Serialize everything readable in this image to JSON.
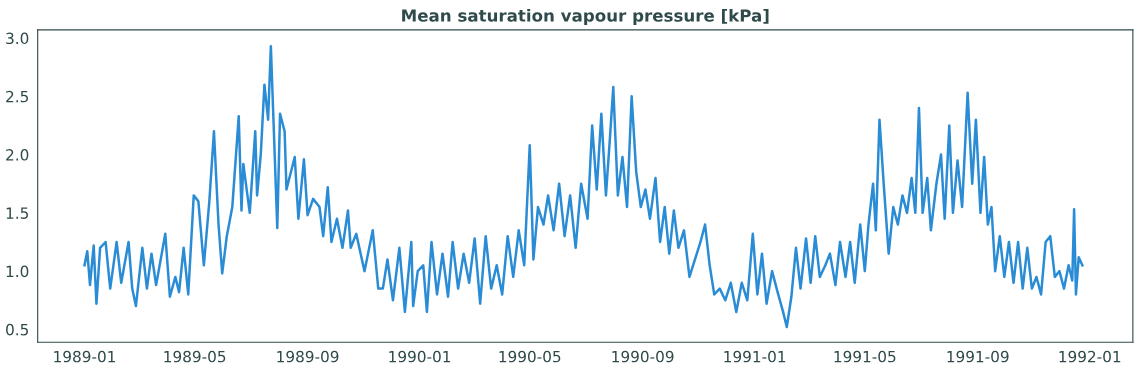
{
  "chart_data": {
    "type": "line",
    "title": "Mean saturation vapour pressure [kPa]",
    "x": [
      "1989-01-01",
      "1989-01-04",
      "1989-01-07",
      "1989-01-11",
      "1989-01-14",
      "1989-01-18",
      "1989-01-24",
      "1989-01-29",
      "1989-02-05",
      "1989-02-10",
      "1989-02-18",
      "1989-02-22",
      "1989-02-26",
      "1989-03-05",
      "1989-03-10",
      "1989-03-15",
      "1989-03-20",
      "1989-03-25",
      "1989-03-30",
      "1989-04-04",
      "1989-04-10",
      "1989-04-14",
      "1989-04-19",
      "1989-04-24",
      "1989-04-30",
      "1989-05-05",
      "1989-05-11",
      "1989-05-17",
      "1989-05-22",
      "1989-05-27",
      "1989-05-31",
      "1989-06-05",
      "1989-06-11",
      "1989-06-18",
      "1989-06-21",
      "1989-06-23",
      "1989-06-30",
      "1989-07-06",
      "1989-07-08",
      "1989-07-12",
      "1989-07-16",
      "1989-07-20",
      "1989-07-23",
      "1989-07-30",
      "1989-08-02",
      "1989-08-07",
      "1989-08-09",
      "1989-08-18",
      "1989-08-22",
      "1989-08-28",
      "1989-09-01",
      "1989-09-07",
      "1989-09-14",
      "1989-09-18",
      "1989-09-23",
      "1989-09-27",
      "1989-10-03",
      "1989-10-09",
      "1989-10-15",
      "1989-10-18",
      "1989-10-24",
      "1989-11-02",
      "1989-11-11",
      "1989-11-17",
      "1989-11-22",
      "1989-11-27",
      "1989-12-03",
      "1989-12-10",
      "1989-12-16",
      "1989-12-23",
      "1989-12-25",
      "1989-12-30",
      "1990-01-05",
      "1990-01-09",
      "1990-01-14",
      "1990-01-20",
      "1990-01-26",
      "1990-02-01",
      "1990-02-06",
      "1990-02-12",
      "1990-02-18",
      "1990-02-24",
      "1990-03-02",
      "1990-03-08",
      "1990-03-14",
      "1990-03-20",
      "1990-03-26",
      "1990-04-01",
      "1990-04-07",
      "1990-04-13",
      "1990-04-19",
      "1990-04-25",
      "1990-05-01",
      "1990-05-05",
      "1990-05-10",
      "1990-05-16",
      "1990-05-21",
      "1990-05-27",
      "1990-06-02",
      "1990-06-08",
      "1990-06-14",
      "1990-06-20",
      "1990-06-26",
      "1990-07-03",
      "1990-07-08",
      "1990-07-13",
      "1990-07-18",
      "1990-07-23",
      "1990-07-27",
      "1990-07-31",
      "1990-08-05",
      "1990-08-10",
      "1990-08-15",
      "1990-08-20",
      "1990-08-25",
      "1990-08-30",
      "1990-09-04",
      "1990-09-09",
      "1990-09-15",
      "1990-09-20",
      "1990-09-25",
      "1990-09-30",
      "1990-10-05",
      "1990-10-10",
      "1990-10-16",
      "1990-10-22",
      "1990-10-28",
      "1990-11-03",
      "1990-11-08",
      "1990-11-13",
      "1990-11-18",
      "1990-11-24",
      "1990-11-30",
      "1990-12-06",
      "1990-12-12",
      "1990-12-18",
      "1990-12-24",
      "1990-12-30",
      "1991-01-04",
      "1991-01-09",
      "1991-01-14",
      "1991-01-20",
      "1991-01-26",
      "1991-02-01",
      "1991-02-05",
      "1991-02-10",
      "1991-02-15",
      "1991-02-20",
      "1991-02-26",
      "1991-03-03",
      "1991-03-08",
      "1991-03-13",
      "1991-03-19",
      "1991-03-24",
      "1991-03-30",
      "1991-04-04",
      "1991-04-10",
      "1991-04-15",
      "1991-04-20",
      "1991-04-26",
      "1991-05-01",
      "1991-05-05",
      "1991-05-10",
      "1991-05-13",
      "1991-05-17",
      "1991-05-22",
      "1991-05-27",
      "1991-06-01",
      "1991-06-06",
      "1991-06-11",
      "1991-06-16",
      "1991-06-21",
      "1991-06-25",
      "1991-06-29",
      "1991-07-03",
      "1991-07-08",
      "1991-07-12",
      "1991-07-18",
      "1991-07-23",
      "1991-07-27",
      "1991-08-01",
      "1991-08-05",
      "1991-08-10",
      "1991-08-15",
      "1991-08-21",
      "1991-08-26",
      "1991-08-30",
      "1991-09-04",
      "1991-09-08",
      "1991-09-12",
      "1991-09-16",
      "1991-09-20",
      "1991-09-25",
      "1991-09-30",
      "1991-10-05",
      "1991-10-10",
      "1991-10-15",
      "1991-10-20",
      "1991-10-25",
      "1991-10-30",
      "1991-11-04",
      "1991-11-09",
      "1991-11-14",
      "1991-11-19",
      "1991-11-24",
      "1991-11-29",
      "1991-12-04",
      "1991-12-09",
      "1991-12-13",
      "1991-12-15",
      "1991-12-17",
      "1991-12-20",
      "1991-12-24"
    ],
    "series": [
      {
        "color": "#2b8cd6",
        "values": [
          1.05,
          1.17,
          0.88,
          1.22,
          0.72,
          1.2,
          1.25,
          0.85,
          1.25,
          0.9,
          1.25,
          0.85,
          0.7,
          1.2,
          0.85,
          1.15,
          0.88,
          1.1,
          1.32,
          0.78,
          0.95,
          0.82,
          1.2,
          0.8,
          1.65,
          1.6,
          1.05,
          1.6,
          2.2,
          1.4,
          0.98,
          1.3,
          1.55,
          2.33,
          1.52,
          1.92,
          1.5,
          2.2,
          1.65,
          2.0,
          2.6,
          2.3,
          2.93,
          1.37,
          2.35,
          2.2,
          1.7,
          1.98,
          1.45,
          1.96,
          1.48,
          1.62,
          1.55,
          1.3,
          1.72,
          1.25,
          1.45,
          1.2,
          1.52,
          1.2,
          1.32,
          1.0,
          1.35,
          0.85,
          0.85,
          1.1,
          0.75,
          1.2,
          0.65,
          1.25,
          0.7,
          1.0,
          1.05,
          0.65,
          1.25,
          0.8,
          1.15,
          0.78,
          1.25,
          0.85,
          1.15,
          0.9,
          1.28,
          0.72,
          1.3,
          0.85,
          1.05,
          0.8,
          1.3,
          0.95,
          1.35,
          1.05,
          2.08,
          1.1,
          1.55,
          1.4,
          1.65,
          1.35,
          1.75,
          1.3,
          1.65,
          1.2,
          1.75,
          1.45,
          2.25,
          1.7,
          2.35,
          1.65,
          2.1,
          2.58,
          1.65,
          1.98,
          1.55,
          2.5,
          1.85,
          1.55,
          1.7,
          1.45,
          1.8,
          1.25,
          1.55,
          1.15,
          1.52,
          1.2,
          1.35,
          0.95,
          1.1,
          1.25,
          1.4,
          1.05,
          0.8,
          0.85,
          0.75,
          0.9,
          0.65,
          0.9,
          0.75,
          1.32,
          0.8,
          1.15,
          0.72,
          1.0,
          0.82,
          0.65,
          0.52,
          0.78,
          1.2,
          0.85,
          1.28,
          0.9,
          1.3,
          0.95,
          1.05,
          1.15,
          0.88,
          1.25,
          0.95,
          1.25,
          0.9,
          1.4,
          1.0,
          1.4,
          1.75,
          1.35,
          2.3,
          1.7,
          1.15,
          1.55,
          1.4,
          1.65,
          1.5,
          1.8,
          1.5,
          2.4,
          1.5,
          1.8,
          1.35,
          1.75,
          2.0,
          1.45,
          2.25,
          1.5,
          1.95,
          1.55,
          2.53,
          1.75,
          2.3,
          1.5,
          1.98,
          1.4,
          1.55,
          1.0,
          1.3,
          0.95,
          1.25,
          0.9,
          1.25,
          0.85,
          1.2,
          0.85,
          0.95,
          0.8,
          1.25,
          1.3,
          0.95,
          1.0,
          0.85,
          1.05,
          0.92,
          1.53,
          0.8,
          1.12,
          1.05
        ]
      }
    ],
    "xlim": [
      "1988-11-11",
      "1992-02-17"
    ],
    "xticks": [
      {
        "value": "1989-01-01",
        "label": "1989-01"
      },
      {
        "value": "1989-05-01",
        "label": "1989-05"
      },
      {
        "value": "1989-09-01",
        "label": "1989-09"
      },
      {
        "value": "1990-01-01",
        "label": "1990-01"
      },
      {
        "value": "1990-05-01",
        "label": "1990-05"
      },
      {
        "value": "1990-09-01",
        "label": "1990-09"
      },
      {
        "value": "1991-01-01",
        "label": "1991-01"
      },
      {
        "value": "1991-05-01",
        "label": "1991-05"
      },
      {
        "value": "1991-09-01",
        "label": "1991-09"
      },
      {
        "value": "1992-01-01",
        "label": "1992-01"
      }
    ],
    "ylim": [
      0.39,
      3.07
    ],
    "yticks": [
      {
        "value": 0.5,
        "label": "0.5"
      },
      {
        "value": 1,
        "label": "1.0"
      },
      {
        "value": 1.5,
        "label": "1.5"
      },
      {
        "value": 2,
        "label": "2.0"
      },
      {
        "value": 2.5,
        "label": "2.5"
      },
      {
        "value": 3,
        "label": "3.0"
      }
    ],
    "grid": false,
    "marker": "none",
    "line_style": "solid"
  }
}
